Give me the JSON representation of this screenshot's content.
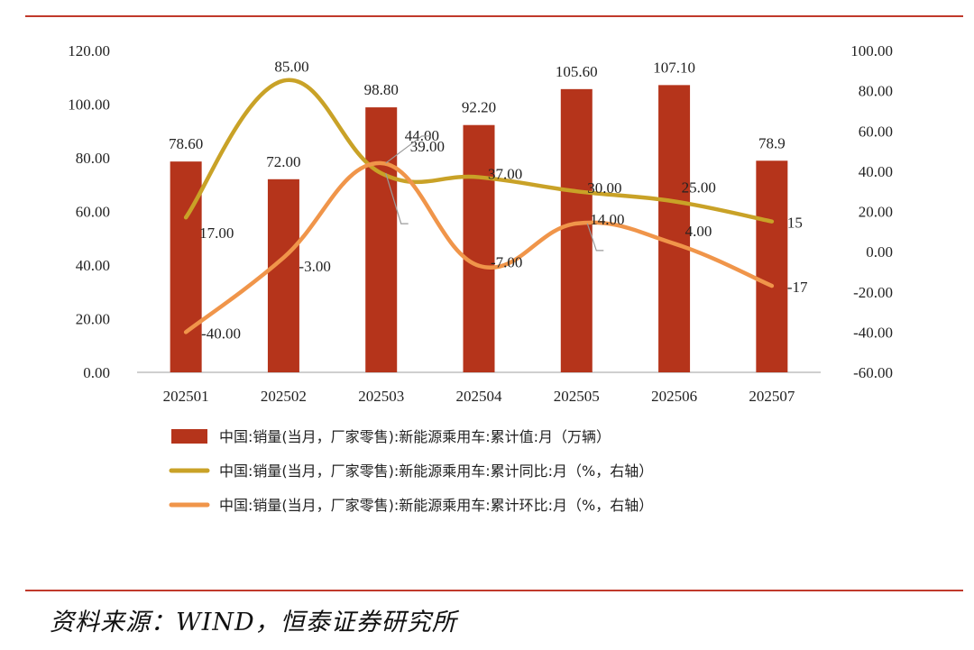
{
  "chart_data": {
    "type": "bar",
    "categories": [
      "202501",
      "202502",
      "202503",
      "202504",
      "202505",
      "202506",
      "202507"
    ],
    "left_axis": {
      "min": 0,
      "max": 120,
      "step": 20,
      "tick_labels": [
        "0.00",
        "20.00",
        "40.00",
        "60.00",
        "80.00",
        "100.00",
        "120.00"
      ]
    },
    "right_axis": {
      "min": -60,
      "max": 100,
      "step": 20,
      "tick_labels": [
        "-60.00",
        "-40.00",
        "-20.00",
        "0.00",
        "20.00",
        "40.00",
        "60.00",
        "80.00",
        "100.00"
      ]
    },
    "series": [
      {
        "name": "中国:销量(当月，厂家零售):新能源乘用车:累计值:月（万辆）",
        "type": "bar",
        "axis": "left",
        "color": "#b5341b",
        "values": [
          78.6,
          72.0,
          98.8,
          92.2,
          105.6,
          107.1,
          78.9
        ],
        "labels": [
          "78.60",
          "72.00",
          "98.80",
          "92.20",
          "105.60",
          "107.10",
          "78.9"
        ]
      },
      {
        "name": "中国:销量(当月，厂家零售):新能源乘用车:累计同比:月（%，右轴）",
        "type": "line",
        "axis": "right",
        "color": "#c9a227",
        "values": [
          17,
          85,
          39,
          37,
          30,
          25,
          15
        ],
        "labels": [
          "17.00",
          "85.00",
          "39.00",
          "37.00",
          "30.00",
          "25.00",
          "15"
        ]
      },
      {
        "name": "中国:销量(当月，厂家零售):新能源乘用车:累计环比:月（%，右轴）",
        "type": "line",
        "axis": "right",
        "color": "#f0954a",
        "values": [
          -40,
          -3,
          44,
          -7,
          14,
          4,
          -17
        ],
        "labels": [
          "-40.00",
          "-3.00",
          "44.00",
          "-7.00",
          "14.00",
          "4.00",
          "-17"
        ]
      }
    ],
    "legend_position": "bottom"
  },
  "source": "资料来源：WIND，恒泰证券研究所"
}
